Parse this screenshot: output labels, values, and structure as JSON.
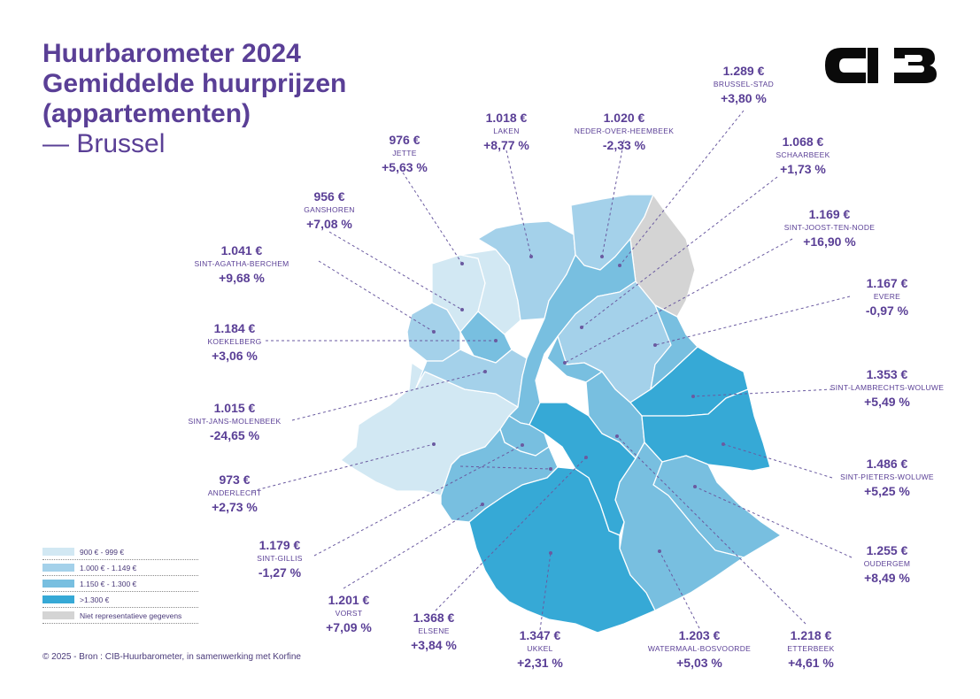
{
  "title": {
    "line1": "Huurbarometer 2024",
    "line2": "Gemiddelde huurprijzen",
    "line3": "(appartementen)",
    "subtitle": "— Brussel"
  },
  "logo": {
    "alt": "CIB"
  },
  "municipalities": {
    "brussel_stad": {
      "price": "1.289 €",
      "name": "BRUSSEL-STAD",
      "change": "+3,80 %",
      "color": "#78bfe0"
    },
    "laken": {
      "price": "1.018 €",
      "name": "LAKEN",
      "change": "+8,77 %",
      "color": "#a4d1ea"
    },
    "neder_over_heembeek": {
      "price": "1.020 €",
      "name": "NEDER-OVER-HEEMBEEK",
      "change": "-2,33 %",
      "color": "#a4d1ea"
    },
    "jette": {
      "price": "976 €",
      "name": "JETTE",
      "change": "+5,63 %",
      "color": "#d2e8f3"
    },
    "ganshoren": {
      "price": "956 €",
      "name": "GANSHOREN",
      "change": "+7,08 %",
      "color": "#d2e8f3"
    },
    "sint_agatha_berchem": {
      "price": "1.041 €",
      "name": "SINT-AGATHA-BERCHEM",
      "change": "+9,68 %",
      "color": "#a4d1ea"
    },
    "koekelberg": {
      "price": "1.184 €",
      "name": "KOEKELBERG",
      "change": "+3,06 %",
      "color": "#78bfe0"
    },
    "sint_jans_molenbeek": {
      "price": "1.015 €",
      "name": "SINT-JANS-MOLENBEEK",
      "change": "-24,65 %",
      "color": "#a4d1ea"
    },
    "anderlecht": {
      "price": "973 €",
      "name": "ANDERLECHT",
      "change": "+2,73 %",
      "color": "#d2e8f3"
    },
    "sint_gillis": {
      "price": "1.179 €",
      "name": "SINT-GILLIS",
      "change": "-1,27 %",
      "color": "#78bfe0"
    },
    "vorst": {
      "price": "1.201 €",
      "name": "VORST",
      "change": "+7,09 %",
      "color": "#78bfe0"
    },
    "elsene": {
      "price": "1.368 €",
      "name": "ELSENE",
      "change": "+3,84 %",
      "color": "#36a9d6"
    },
    "ukkel": {
      "price": "1.347 €",
      "name": "UKKEL",
      "change": "+2,31 %",
      "color": "#36a9d6"
    },
    "watermaal_bosvoorde": {
      "price": "1.203 €",
      "name": "WATERMAAL-BOSVOORDE",
      "change": "+5,03 %",
      "color": "#78bfe0"
    },
    "etterbeek": {
      "price": "1.218 €",
      "name": "ETTERBEEK",
      "change": "+4,61 %",
      "color": "#78bfe0"
    },
    "schaarbeek": {
      "price": "1.068 €",
      "name": "SCHAARBEEK",
      "change": "+1,73 %",
      "color": "#a4d1ea"
    },
    "sint_joost_ten_node": {
      "price": "1.169 €",
      "name": "SINT-JOOST-TEN-NODE",
      "change": "+16,90 %",
      "color": "#78bfe0"
    },
    "evere": {
      "price": "1.167 €",
      "name": "EVERE",
      "change": "-0,97 %",
      "color": "#78bfe0"
    },
    "sint_lambrechts_woluwe": {
      "price": "1.353 €",
      "name": "SINT-LAMBRECHTS-WOLUWE",
      "change": "+5,49 %",
      "color": "#36a9d6"
    },
    "sint_pieters_woluwe": {
      "price": "1.486 €",
      "name": "SINT-PIETERS-WOLUWE",
      "change": "+5,25 %",
      "color": "#36a9d6"
    },
    "oudergem": {
      "price": "1.255 €",
      "name": "OUDERGEM",
      "change": "+8,49 %",
      "color": "#78bfe0"
    },
    "haren": {
      "color": "#d4d4d4"
    }
  },
  "legend": [
    {
      "label": "900 € - 999 €",
      "color": "#d2e8f3"
    },
    {
      "label": "1.000 € - 1.149 €",
      "color": "#a4d1ea"
    },
    {
      "label": "1.150 € - 1.300 €",
      "color": "#78bfe0"
    },
    {
      "label": ">1.300 €",
      "color": "#36a9d6"
    },
    {
      "label": "Niet representatieve gegevens",
      "color": "#d4d4d4"
    }
  ],
  "footer": "© 2025 - Bron : CIB-Huurbarometer, in samenwerking met Korfine"
}
